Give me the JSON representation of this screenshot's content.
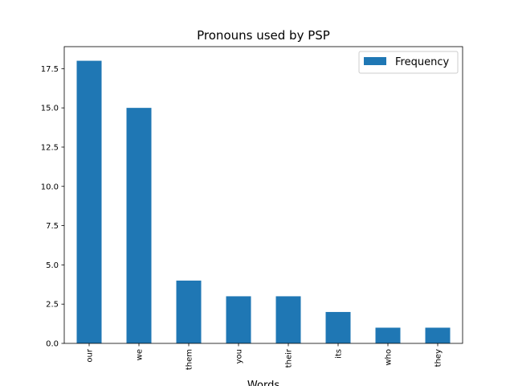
{
  "chart_data": {
    "type": "bar",
    "title": "Pronouns used by PSP",
    "xlabel": "Words",
    "ylabel": "",
    "categories": [
      "our",
      "we",
      "them",
      "you",
      "their",
      "its",
      "who",
      "they"
    ],
    "series": [
      {
        "name": "Frequency",
        "values": [
          18,
          15,
          4,
          3,
          3,
          2,
          1,
          1
        ],
        "color": "#1f77b4"
      }
    ],
    "ylim": [
      0,
      18.9
    ],
    "yticks": [
      0.0,
      2.5,
      5.0,
      7.5,
      10.0,
      12.5,
      15.0,
      17.5
    ],
    "ytick_labels": [
      "0.0",
      "2.5",
      "5.0",
      "7.5",
      "10.0",
      "12.5",
      "15.0",
      "17.5"
    ],
    "grid": false,
    "legend_position": "top-right"
  }
}
